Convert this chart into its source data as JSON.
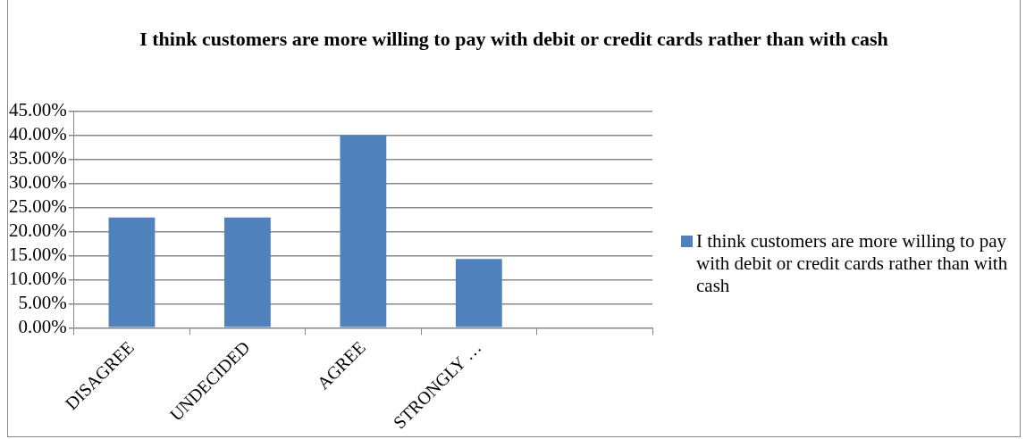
{
  "chart_data": {
    "type": "bar",
    "title": "I think customers are more willing to pay with debit or credit cards rather than with cash",
    "categories": [
      "DISAGREE",
      "UNDECIDED",
      "AGREE",
      "STRONGLY …",
      null
    ],
    "series": [
      {
        "name": "I think customers are more willing to pay with debit or credit cards rather than with cash",
        "color": "#4f81bd",
        "values": [
          22.9,
          22.9,
          40,
          14.3,
          null
        ]
      }
    ],
    "ylim": [
      0,
      45
    ],
    "yticks": [
      {
        "value": 0,
        "label": "0.00%"
      },
      {
        "value": 5,
        "label": "5.00%"
      },
      {
        "value": 10,
        "label": "10.00%"
      },
      {
        "value": 15,
        "label": "15.00%"
      },
      {
        "value": 20,
        "label": "20.00%"
      },
      {
        "value": 25,
        "label": "25.00%"
      },
      {
        "value": 30,
        "label": "30.00%"
      },
      {
        "value": 35,
        "label": "35.00%"
      },
      {
        "value": 40,
        "label": "40.00%"
      },
      {
        "value": 45,
        "label": "45.00%"
      }
    ],
    "grid": "y",
    "legend": "right"
  }
}
